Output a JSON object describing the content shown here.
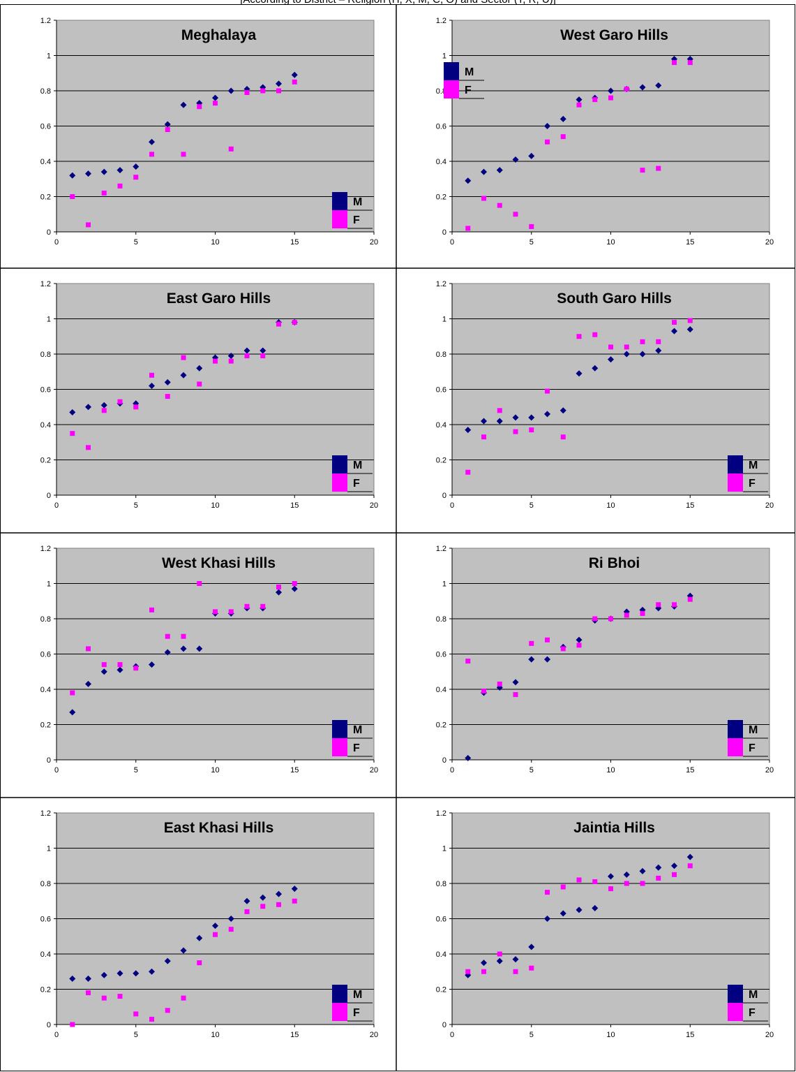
{
  "caption": "[According to District – Religion (H, X, M, C, O) and Sector (T, R, U)]",
  "colors": {
    "plot_bg": "#c0c0c0",
    "M": "#000080",
    "F": "#ff00ff",
    "gridline": "#000000"
  },
  "chart_data": [
    {
      "type": "scatter",
      "title": "Meghalaya",
      "xlim": [
        0,
        20
      ],
      "ylim": [
        0,
        1.2
      ],
      "xticks": [
        "0",
        "5",
        "10",
        "15",
        "20"
      ],
      "yticks": [
        "0",
        "0.2",
        "0.4",
        "0.6",
        "0.8",
        "1",
        "1.2"
      ],
      "legend_position": "bottom-right",
      "grid": "horizontal",
      "series": [
        {
          "name": "M",
          "marker": "diamond",
          "x": [
            1,
            2,
            3,
            4,
            5,
            6,
            7,
            8,
            9,
            10,
            11,
            12,
            13,
            14,
            15
          ],
          "y": [
            0.32,
            0.33,
            0.34,
            0.35,
            0.37,
            0.51,
            0.61,
            0.72,
            0.73,
            0.76,
            0.8,
            0.81,
            0.82,
            0.84,
            0.89
          ]
        },
        {
          "name": "F",
          "marker": "square",
          "x": [
            1,
            2,
            3,
            4,
            5,
            6,
            7,
            8,
            9,
            10,
            11,
            12,
            13,
            14,
            15
          ],
          "y": [
            0.2,
            0.04,
            0.22,
            0.26,
            0.31,
            0.44,
            0.58,
            0.44,
            0.71,
            0.73,
            0.47,
            0.79,
            0.8,
            0.8,
            0.85
          ]
        }
      ]
    },
    {
      "type": "scatter",
      "title": "West Garo Hills",
      "xlim": [
        0,
        20
      ],
      "ylim": [
        0,
        1.2
      ],
      "xticks": [
        "0",
        "5",
        "10",
        "15",
        "20"
      ],
      "yticks": [
        "0",
        "0.2",
        "0.4",
        "0.6",
        "0.8",
        "1",
        "1.2"
      ],
      "legend_position": "top-left",
      "grid": "horizontal",
      "series": [
        {
          "name": "M",
          "marker": "diamond",
          "x": [
            1,
            2,
            3,
            4,
            5,
            6,
            7,
            8,
            9,
            10,
            11,
            12,
            13,
            14,
            15
          ],
          "y": [
            0.29,
            0.34,
            0.35,
            0.41,
            0.43,
            0.6,
            0.64,
            0.75,
            0.76,
            0.8,
            0.81,
            0.82,
            0.83,
            0.98,
            0.98
          ]
        },
        {
          "name": "F",
          "marker": "square",
          "x": [
            1,
            2,
            3,
            4,
            5,
            6,
            7,
            8,
            9,
            10,
            11,
            12,
            13,
            14,
            15
          ],
          "y": [
            0.02,
            0.19,
            0.15,
            0.1,
            0.03,
            0.51,
            0.54,
            0.72,
            0.75,
            0.76,
            0.81,
            0.35,
            0.36,
            0.96,
            0.96
          ]
        }
      ]
    },
    {
      "type": "scatter",
      "title": "East Garo Hills",
      "xlim": [
        0,
        20
      ],
      "ylim": [
        0,
        1.2
      ],
      "xticks": [
        "0",
        "5",
        "10",
        "15",
        "20"
      ],
      "yticks": [
        "0",
        "0.2",
        "0.4",
        "0.6",
        "0.8",
        "1",
        "1.2"
      ],
      "legend_position": "bottom-right",
      "grid": "horizontal",
      "series": [
        {
          "name": "M",
          "marker": "diamond",
          "x": [
            1,
            2,
            3,
            4,
            5,
            6,
            7,
            8,
            9,
            10,
            11,
            12,
            13,
            14,
            15
          ],
          "y": [
            0.47,
            0.5,
            0.51,
            0.52,
            0.52,
            0.62,
            0.64,
            0.68,
            0.72,
            0.78,
            0.79,
            0.82,
            0.82,
            0.98,
            0.98
          ]
        },
        {
          "name": "F",
          "marker": "square",
          "x": [
            1,
            2,
            3,
            4,
            5,
            6,
            7,
            8,
            9,
            10,
            11,
            12,
            13,
            14,
            15
          ],
          "y": [
            0.35,
            0.27,
            0.48,
            0.53,
            0.5,
            0.68,
            0.56,
            0.78,
            0.63,
            0.76,
            0.76,
            0.79,
            0.79,
            0.97,
            0.98
          ]
        }
      ]
    },
    {
      "type": "scatter",
      "title": "South Garo Hills",
      "xlim": [
        0,
        20
      ],
      "ylim": [
        0,
        1.2
      ],
      "xticks": [
        "0",
        "5",
        "10",
        "15",
        "20"
      ],
      "yticks": [
        "0",
        "0.2",
        "0.4",
        "0.6",
        "0.8",
        "1",
        "1.2"
      ],
      "legend_position": "bottom-right",
      "grid": "horizontal",
      "series": [
        {
          "name": "M",
          "marker": "diamond",
          "x": [
            1,
            2,
            3,
            4,
            5,
            6,
            7,
            8,
            9,
            10,
            11,
            12,
            13,
            14,
            15
          ],
          "y": [
            0.37,
            0.42,
            0.42,
            0.44,
            0.44,
            0.46,
            0.48,
            0.69,
            0.72,
            0.77,
            0.8,
            0.8,
            0.82,
            0.93,
            0.94
          ]
        },
        {
          "name": "F",
          "marker": "square",
          "x": [
            1,
            2,
            3,
            4,
            5,
            6,
            7,
            8,
            9,
            10,
            11,
            12,
            13,
            14,
            15
          ],
          "y": [
            0.13,
            0.33,
            0.48,
            0.36,
            0.37,
            0.59,
            0.33,
            0.9,
            0.91,
            0.84,
            0.84,
            0.87,
            0.87,
            0.98,
            0.99
          ]
        }
      ]
    },
    {
      "type": "scatter",
      "title": "West Khasi Hills",
      "xlim": [
        0,
        20
      ],
      "ylim": [
        0,
        1.2
      ],
      "xticks": [
        "0",
        "5",
        "10",
        "15",
        "20"
      ],
      "yticks": [
        "0",
        "0.2",
        "0.4",
        "0.6",
        "0.8",
        "1",
        "1.2"
      ],
      "legend_position": "bottom-right",
      "grid": "horizontal",
      "series": [
        {
          "name": "M",
          "marker": "diamond",
          "x": [
            1,
            2,
            3,
            4,
            5,
            6,
            7,
            8,
            9,
            10,
            11,
            12,
            13,
            14,
            15
          ],
          "y": [
            0.27,
            0.43,
            0.5,
            0.51,
            0.53,
            0.54,
            0.61,
            0.63,
            0.63,
            0.83,
            0.83,
            0.86,
            0.86,
            0.95,
            0.97
          ]
        },
        {
          "name": "F",
          "marker": "square",
          "x": [
            1,
            2,
            3,
            4,
            5,
            6,
            7,
            8,
            9,
            10,
            11,
            12,
            13,
            14,
            15
          ],
          "y": [
            0.38,
            0.63,
            0.54,
            0.54,
            0.52,
            0.85,
            0.7,
            0.7,
            1.0,
            0.84,
            0.84,
            0.87,
            0.87,
            0.98,
            1.0
          ]
        }
      ]
    },
    {
      "type": "scatter",
      "title": "Ri Bhoi",
      "xlim": [
        0,
        20
      ],
      "ylim": [
        0,
        1.2
      ],
      "xticks": [
        "0",
        "5",
        "10",
        "15",
        "20"
      ],
      "yticks": [
        "0",
        "0.2",
        "0.4",
        "0.6",
        "0.8",
        "1",
        "1.2"
      ],
      "legend_position": "bottom-right",
      "grid": "horizontal",
      "series": [
        {
          "name": "M",
          "marker": "diamond",
          "x": [
            1,
            2,
            3,
            4,
            5,
            6,
            7,
            8,
            9,
            10,
            11,
            12,
            13,
            14,
            15
          ],
          "y": [
            0.01,
            0.38,
            0.41,
            0.44,
            0.57,
            0.57,
            0.64,
            0.68,
            0.79,
            0.8,
            0.84,
            0.85,
            0.86,
            0.87,
            0.93
          ]
        },
        {
          "name": "F",
          "marker": "square",
          "x": [
            1,
            2,
            3,
            4,
            5,
            6,
            7,
            8,
            9,
            10,
            11,
            12,
            13,
            14,
            15
          ],
          "y": [
            0.56,
            0.39,
            0.43,
            0.37,
            0.66,
            0.68,
            0.63,
            0.65,
            0.8,
            0.8,
            0.82,
            0.83,
            0.88,
            0.88,
            0.91
          ]
        }
      ]
    },
    {
      "type": "scatter",
      "title": "East Khasi Hills",
      "xlim": [
        0,
        20
      ],
      "ylim": [
        0,
        1.2
      ],
      "xticks": [
        "0",
        "5",
        "10",
        "15",
        "20"
      ],
      "yticks": [
        "0",
        "0.2",
        "0.4",
        "0.6",
        "0.8",
        "1",
        "1.2"
      ],
      "legend_position": "bottom-right",
      "grid": "horizontal",
      "series": [
        {
          "name": "M",
          "marker": "diamond",
          "x": [
            1,
            2,
            3,
            4,
            5,
            6,
            7,
            8,
            9,
            10,
            11,
            12,
            13,
            14,
            15
          ],
          "y": [
            0.26,
            0.26,
            0.28,
            0.29,
            0.29,
            0.3,
            0.36,
            0.42,
            0.49,
            0.56,
            0.6,
            0.7,
            0.72,
            0.74,
            0.77
          ]
        },
        {
          "name": "F",
          "marker": "square",
          "x": [
            1,
            2,
            3,
            4,
            5,
            6,
            7,
            8,
            9,
            10,
            11,
            12,
            13,
            14,
            15
          ],
          "y": [
            0.0,
            0.18,
            0.15,
            0.16,
            0.06,
            0.03,
            0.08,
            0.15,
            0.35,
            0.51,
            0.54,
            0.64,
            0.67,
            0.68,
            0.7
          ]
        }
      ]
    },
    {
      "type": "scatter",
      "title": "Jaintia Hills",
      "xlim": [
        0,
        20
      ],
      "ylim": [
        0,
        1.2
      ],
      "xticks": [
        "0",
        "5",
        "10",
        "15",
        "20"
      ],
      "yticks": [
        "0",
        "0.2",
        "0.4",
        "0.6",
        "0.8",
        "1",
        "1.2"
      ],
      "legend_position": "bottom-right",
      "grid": "horizontal",
      "series": [
        {
          "name": "M",
          "marker": "diamond",
          "x": [
            1,
            2,
            3,
            4,
            5,
            6,
            7,
            8,
            9,
            10,
            11,
            12,
            13,
            14,
            15
          ],
          "y": [
            0.28,
            0.35,
            0.36,
            0.37,
            0.44,
            0.6,
            0.63,
            0.65,
            0.66,
            0.84,
            0.85,
            0.87,
            0.89,
            0.9,
            0.95
          ]
        },
        {
          "name": "F",
          "marker": "square",
          "x": [
            1,
            2,
            3,
            4,
            5,
            6,
            7,
            8,
            9,
            10,
            11,
            12,
            13,
            14,
            15
          ],
          "y": [
            0.3,
            0.3,
            0.4,
            0.3,
            0.32,
            0.75,
            0.78,
            0.82,
            0.81,
            0.77,
            0.8,
            0.8,
            0.83,
            0.85,
            0.9
          ]
        }
      ]
    }
  ]
}
